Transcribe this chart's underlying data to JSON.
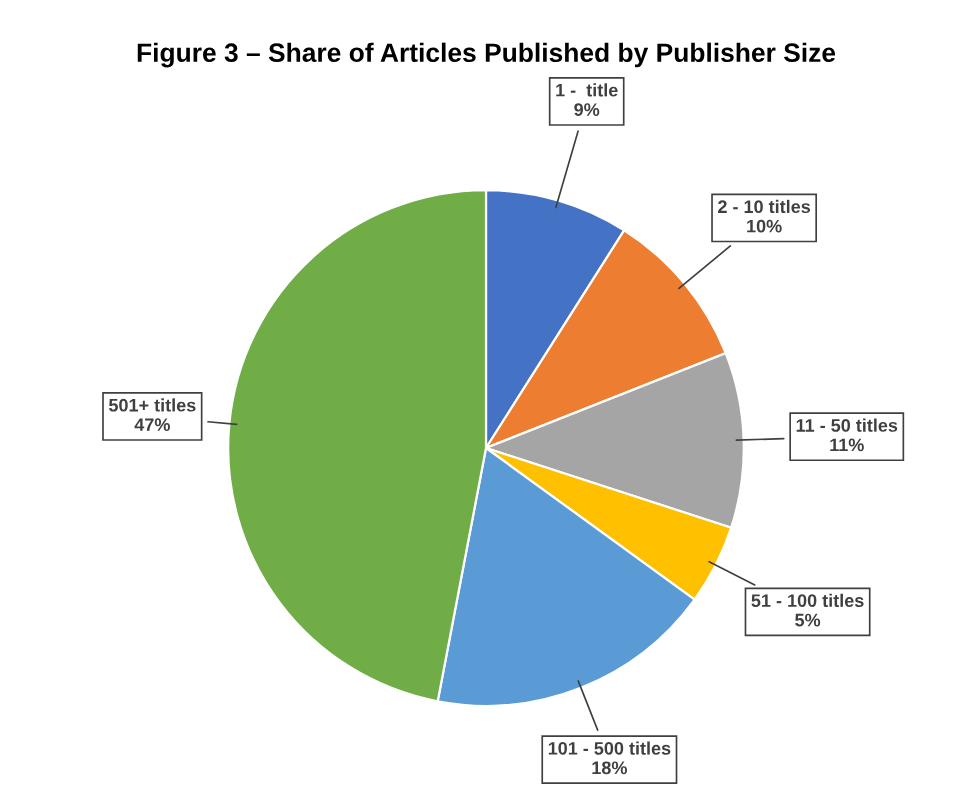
{
  "chart_data": {
    "type": "pie",
    "title": "Figure 3 – Share of Articles Published by Publisher Size",
    "categories": [
      "1 -  title",
      "2 - 10 titles",
      "11 - 50 titles",
      "51 - 100 titles",
      "101 - 500 titles",
      "501+ titles"
    ],
    "values": [
      9,
      10,
      11,
      5,
      18,
      47
    ],
    "colors": [
      "#4472c4",
      "#ed7d31",
      "#a5a5a5",
      "#ffc000",
      "#5b9bd5",
      "#70ad47"
    ],
    "value_labels": [
      "9%",
      "10%",
      "11%",
      "5%",
      "18%",
      "47%"
    ],
    "legend": false
  }
}
